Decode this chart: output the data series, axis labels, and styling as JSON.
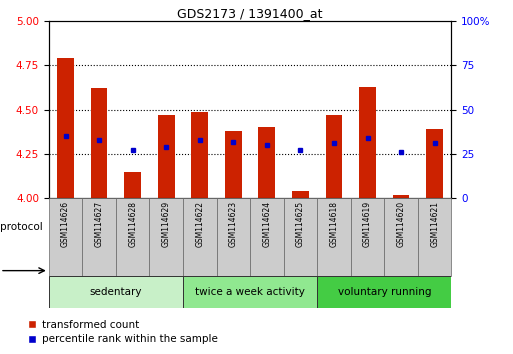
{
  "title": "GDS2173 / 1391400_at",
  "samples": [
    "GSM114626",
    "GSM114627",
    "GSM114628",
    "GSM114629",
    "GSM114622",
    "GSM114623",
    "GSM114624",
    "GSM114625",
    "GSM114618",
    "GSM114619",
    "GSM114620",
    "GSM114621"
  ],
  "red_values": [
    4.79,
    4.62,
    4.15,
    4.47,
    4.49,
    4.38,
    4.4,
    4.04,
    4.47,
    4.63,
    4.02,
    4.39
  ],
  "blue_values": [
    4.35,
    4.33,
    4.27,
    4.29,
    4.33,
    4.32,
    4.3,
    4.27,
    4.31,
    4.34,
    4.26,
    4.31
  ],
  "base_value": 4.0,
  "ylim": [
    4.0,
    5.0
  ],
  "y2lim": [
    0,
    100
  ],
  "yticks": [
    4.0,
    4.25,
    4.5,
    4.75,
    5.0
  ],
  "y2ticks": [
    0,
    25,
    50,
    75,
    100
  ],
  "groups": [
    {
      "label": "sedentary",
      "start": 0,
      "end": 4,
      "color": "#c8f0c8"
    },
    {
      "label": "twice a week activity",
      "start": 4,
      "end": 8,
      "color": "#90e890"
    },
    {
      "label": "voluntary running",
      "start": 8,
      "end": 12,
      "color": "#44cc44"
    }
  ],
  "red_color": "#cc2200",
  "blue_color": "#0000cc",
  "bar_width": 0.5,
  "background_color": "#ffffff",
  "legend_red": "transformed count",
  "legend_blue": "percentile rank within the sample",
  "protocol_label": "protocol"
}
